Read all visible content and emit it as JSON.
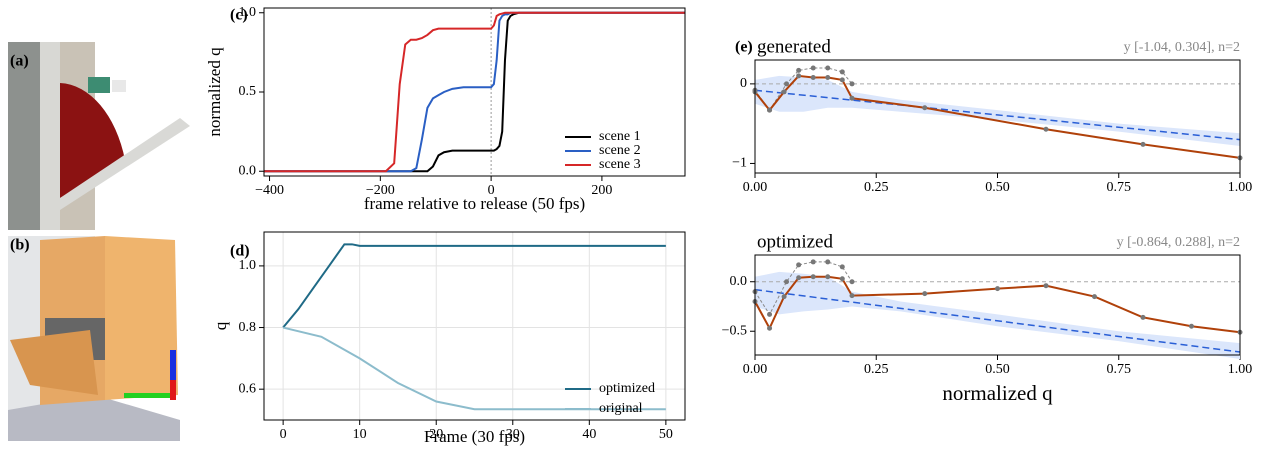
{
  "images": [
    {
      "label": "(a)"
    },
    {
      "label": "(b)"
    }
  ],
  "chart_data": [
    {
      "type": "line",
      "panel": "(c)",
      "xlabel": "frame relative to release (50 fps)",
      "ylabel": "normalized q",
      "x": [
        -410,
        -190,
        -175,
        -165,
        -155,
        -145,
        -135,
        -125,
        -115,
        -105,
        -95,
        -85,
        -70,
        -50,
        -20,
        0,
        5,
        10,
        15,
        20,
        25,
        30,
        35,
        40,
        50,
        100,
        200,
        350
      ],
      "series": [
        {
          "name": "scene 1",
          "color": "#000000",
          "values": [
            0,
            0,
            0,
            0,
            0,
            0,
            0,
            0,
            0,
            0.03,
            0.1,
            0.12,
            0.13,
            0.13,
            0.13,
            0.13,
            0.13,
            0.14,
            0.16,
            0.25,
            0.7,
            0.95,
            0.98,
            0.99,
            1,
            1,
            1,
            1
          ]
        },
        {
          "name": "scene 2",
          "color": "#2a5fc4",
          "values": [
            0,
            0,
            0,
            0,
            0,
            0,
            0.02,
            0.2,
            0.4,
            0.46,
            0.48,
            0.5,
            0.52,
            0.53,
            0.53,
            0.53,
            0.55,
            0.7,
            0.95,
            0.98,
            0.99,
            0.99,
            1,
            1,
            1,
            1,
            1,
            1
          ]
        },
        {
          "name": "scene 3",
          "color": "#d62728",
          "values": [
            0,
            0,
            0.05,
            0.55,
            0.8,
            0.83,
            0.83,
            0.84,
            0.86,
            0.89,
            0.9,
            0.9,
            0.9,
            0.9,
            0.9,
            0.9,
            0.92,
            0.98,
            0.99,
            0.995,
            1,
            1,
            1,
            1,
            1,
            1,
            1,
            1
          ]
        }
      ],
      "xlim": [
        -410,
        350
      ],
      "ylim": [
        -0.03,
        1.03
      ],
      "xticks": [
        {
          "value": -400,
          "label": "−400"
        },
        {
          "value": -200,
          "label": "−200"
        },
        0,
        200
      ],
      "yticks": [
        {
          "value": 0,
          "label": "0.0"
        },
        0.5,
        {
          "value": 1,
          "label": "1.0"
        }
      ],
      "vline": 0,
      "grid": false,
      "legend": "lower right"
    },
    {
      "type": "line",
      "panel": "(d)",
      "xlabel": "Frame (30 fps)",
      "ylabel": "q",
      "series": [
        {
          "name": "optimized",
          "color": "#1f6a86",
          "x": [
            0,
            2,
            4,
            6,
            8,
            9,
            10,
            50
          ],
          "values": [
            0.8,
            0.86,
            0.93,
            1.0,
            1.07,
            1.07,
            1.065,
            1.065
          ]
        },
        {
          "name": "original",
          "color": "#8cbccc",
          "x": [
            0,
            5,
            10,
            15,
            20,
            25,
            30,
            50
          ],
          "values": [
            0.8,
            0.77,
            0.7,
            0.62,
            0.56,
            0.535,
            0.535,
            0.535
          ]
        }
      ],
      "xlim": [
        -2.5,
        52.5
      ],
      "ylim": [
        0.5,
        1.11
      ],
      "xticks": [
        0,
        10,
        20,
        30,
        40,
        50
      ],
      "yticks": [
        0.6,
        0.8,
        {
          "value": 1,
          "label": "1.0"
        }
      ],
      "grid": true,
      "legend": "lower right"
    },
    {
      "type": "line",
      "panel": "(e)",
      "title": "generated",
      "annotation": "y [-1.04, 0.304], n=2",
      "band": {
        "color": "#dbe6fb",
        "x": [
          0,
          0.05,
          0.1,
          0.15,
          0.2,
          0.3,
          0.5,
          0.75,
          1.0
        ],
        "lower": [
          -0.25,
          -0.35,
          -0.35,
          -0.3,
          -0.3,
          -0.35,
          -0.45,
          -0.6,
          -0.78
        ],
        "upper": [
          0.05,
          0.1,
          0.08,
          0.05,
          -0.1,
          -0.2,
          -0.33,
          -0.5,
          -0.62
        ]
      },
      "series": [
        {
          "color": "#2a5fd6",
          "dash": true,
          "x": [
            0,
            1
          ],
          "values": [
            -0.08,
            -0.7
          ]
        },
        {
          "color": "#888888",
          "dash": true,
          "marker": true,
          "x": [
            0,
            0.03,
            0.065,
            0.09,
            0.12,
            0.15,
            0.18,
            0.2
          ],
          "values": [
            -0.08,
            -0.33,
            0,
            0.17,
            0.2,
            0.2,
            0.15,
            0
          ]
        },
        {
          "color": "#b0410a",
          "marker": true,
          "x": [
            0,
            0.03,
            0.06,
            0.09,
            0.12,
            0.15,
            0.18,
            0.2,
            0.35,
            0.6,
            0.8,
            1.0
          ],
          "values": [
            -0.1,
            -0.33,
            -0.1,
            0.1,
            0.08,
            0.08,
            0.05,
            -0.18,
            -0.3,
            -0.57,
            -0.76,
            -0.93
          ]
        }
      ],
      "xlim": [
        0,
        1
      ],
      "ylim": [
        -1.12,
        0.3
      ],
      "xticks": [
        {
          "value": 0,
          "label": "0.00"
        },
        0.25,
        {
          "value": 0.5,
          "label": "0.50"
        },
        0.75,
        {
          "value": 1,
          "label": "1.00"
        }
      ],
      "yticks": [
        {
          "value": -1,
          "label": "−1"
        },
        0
      ],
      "hline": 0,
      "grid": false
    },
    {
      "type": "line",
      "title": "optimized",
      "annotation": "y [-0.864, 0.288], n=2",
      "xlabel": "normalized q",
      "band": {
        "color": "#dbe6fb",
        "x": [
          0,
          0.05,
          0.1,
          0.15,
          0.2,
          0.3,
          0.5,
          0.75,
          1.0
        ],
        "lower": [
          -0.25,
          -0.33,
          -0.3,
          -0.28,
          -0.25,
          -0.3,
          -0.45,
          -0.6,
          -0.78
        ],
        "upper": [
          0.05,
          0.1,
          0.08,
          0.05,
          -0.1,
          -0.2,
          -0.33,
          -0.5,
          -0.62
        ]
      },
      "series": [
        {
          "color": "#2a5fd6",
          "dash": true,
          "x": [
            0,
            1
          ],
          "values": [
            -0.08,
            -0.71
          ]
        },
        {
          "color": "#888888",
          "dash": true,
          "marker": true,
          "x": [
            0,
            0.03,
            0.065,
            0.09,
            0.12,
            0.15,
            0.18,
            0.2
          ],
          "values": [
            -0.1,
            -0.33,
            0,
            0.17,
            0.2,
            0.2,
            0.15,
            0
          ]
        },
        {
          "color": "#b0410a",
          "marker": true,
          "x": [
            0,
            0.03,
            0.06,
            0.09,
            0.12,
            0.15,
            0.18,
            0.2,
            0.35,
            0.5,
            0.6,
            0.7,
            0.8,
            0.9,
            1.0
          ],
          "values": [
            -0.2,
            -0.47,
            -0.15,
            0.04,
            0.05,
            0.05,
            0.03,
            -0.14,
            -0.12,
            -0.07,
            -0.04,
            -0.15,
            -0.36,
            -0.45,
            -0.51
          ]
        }
      ],
      "xlim": [
        0,
        1
      ],
      "ylim": [
        -0.74,
        0.27
      ],
      "xticks": [
        {
          "value": 0,
          "label": "0.00"
        },
        0.25,
        {
          "value": 0.5,
          "label": "0.50"
        },
        0.75,
        {
          "value": 1,
          "label": "1.00"
        }
      ],
      "yticks": [
        {
          "value": -0.5,
          "label": "−0.5"
        },
        {
          "value": 0,
          "label": "0.0"
        }
      ],
      "hline": 0,
      "grid": false
    }
  ]
}
